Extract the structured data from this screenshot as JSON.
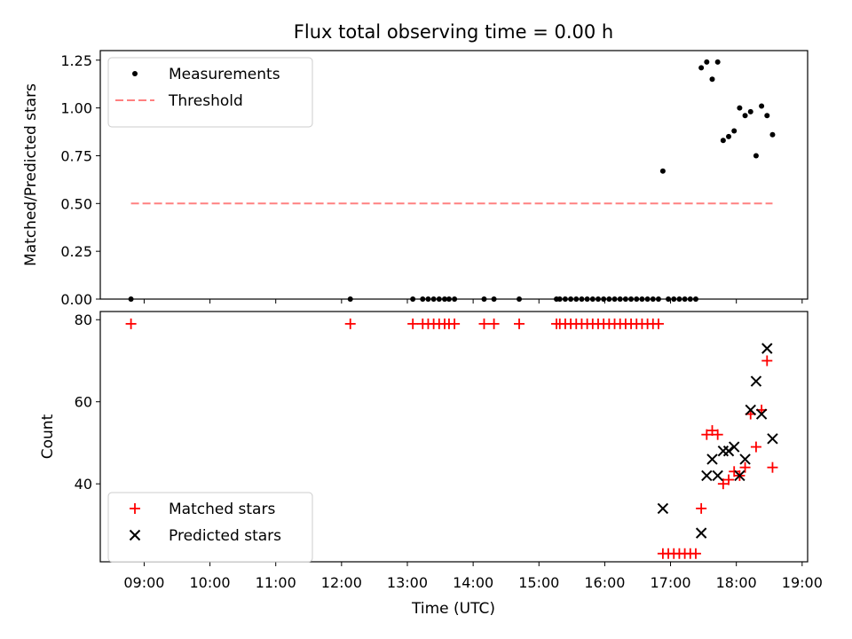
{
  "title": "Flux total observing time = 0.00 h",
  "xlabel": "Time (UTC)",
  "chart_data": [
    {
      "type": "scatter",
      "ylabel": "Matched/Predicted stars",
      "ylim": [
        0,
        1.3
      ],
      "xlim": [
        "08:20",
        "19:05"
      ],
      "yticks": [
        "0.00",
        "0.25",
        "0.50",
        "0.75",
        "1.00",
        "1.25"
      ],
      "legend": {
        "placement": "top-left"
      },
      "series": [
        {
          "name": "Measurements",
          "marker": "dot",
          "color": "#000000",
          "points": [
            [
              "08:48",
              0
            ],
            [
              "12:08",
              0
            ],
            [
              "13:05",
              0
            ],
            [
              "13:14",
              0
            ],
            [
              "13:19",
              0
            ],
            [
              "13:24",
              0
            ],
            [
              "13:29",
              0
            ],
            [
              "13:34",
              0
            ],
            [
              "13:38",
              0
            ],
            [
              "13:43",
              0
            ],
            [
              "14:10",
              0
            ],
            [
              "14:19",
              0
            ],
            [
              "14:42",
              0
            ],
            [
              "15:16",
              0
            ],
            [
              "15:19",
              0
            ],
            [
              "15:24",
              0
            ],
            [
              "15:29",
              0
            ],
            [
              "15:34",
              0
            ],
            [
              "15:39",
              0
            ],
            [
              "15:44",
              0
            ],
            [
              "15:49",
              0
            ],
            [
              "15:54",
              0
            ],
            [
              "15:59",
              0
            ],
            [
              "16:04",
              0
            ],
            [
              "16:09",
              0
            ],
            [
              "16:14",
              0
            ],
            [
              "16:19",
              0
            ],
            [
              "16:24",
              0
            ],
            [
              "16:29",
              0
            ],
            [
              "16:34",
              0
            ],
            [
              "16:39",
              0
            ],
            [
              "16:44",
              0
            ],
            [
              "16:49",
              0
            ],
            [
              "16:53",
              0.67
            ],
            [
              "16:58",
              0
            ],
            [
              "17:03",
              0
            ],
            [
              "17:08",
              0
            ],
            [
              "17:13",
              0
            ],
            [
              "17:18",
              0
            ],
            [
              "17:23",
              0
            ],
            [
              "17:28",
              1.21
            ],
            [
              "17:33",
              1.24
            ],
            [
              "17:38",
              1.15
            ],
            [
              "17:43",
              1.24
            ],
            [
              "17:48",
              0.83
            ],
            [
              "17:53",
              0.85
            ],
            [
              "17:58",
              0.88
            ],
            [
              "18:03",
              1.0
            ],
            [
              "18:08",
              0.96
            ],
            [
              "18:13",
              0.98
            ],
            [
              "18:18",
              0.75
            ],
            [
              "18:23",
              1.01
            ],
            [
              "18:28",
              0.96
            ],
            [
              "18:33",
              0.86
            ]
          ]
        },
        {
          "name": "Threshold",
          "marker": "dashed-line",
          "color": "#ff8080",
          "points": [
            [
              "08:48",
              0.5
            ],
            [
              "18:33",
              0.5
            ]
          ]
        }
      ]
    },
    {
      "type": "scatter",
      "ylabel": "Count",
      "ylim": [
        21,
        82
      ],
      "xlim": [
        "08:20",
        "19:05"
      ],
      "yticks": [
        "40",
        "60",
        "80"
      ],
      "xticks": [
        "09:00",
        "10:00",
        "11:00",
        "12:00",
        "13:00",
        "14:00",
        "15:00",
        "16:00",
        "17:00",
        "18:00",
        "19:00"
      ],
      "legend": {
        "placement": "bottom-left"
      },
      "series": [
        {
          "name": "Matched stars",
          "marker": "plus",
          "color": "#ff0000",
          "points": [
            [
              "08:48",
              79
            ],
            [
              "12:08",
              79
            ],
            [
              "13:05",
              79
            ],
            [
              "13:14",
              79
            ],
            [
              "13:19",
              79
            ],
            [
              "13:24",
              79
            ],
            [
              "13:29",
              79
            ],
            [
              "13:34",
              79
            ],
            [
              "13:38",
              79
            ],
            [
              "13:43",
              79
            ],
            [
              "14:10",
              79
            ],
            [
              "14:19",
              79
            ],
            [
              "14:42",
              79
            ],
            [
              "15:16",
              79
            ],
            [
              "15:19",
              79
            ],
            [
              "15:24",
              79
            ],
            [
              "15:29",
              79
            ],
            [
              "15:34",
              79
            ],
            [
              "15:39",
              79
            ],
            [
              "15:44",
              79
            ],
            [
              "15:49",
              79
            ],
            [
              "15:54",
              79
            ],
            [
              "15:59",
              79
            ],
            [
              "16:04",
              79
            ],
            [
              "16:09",
              79
            ],
            [
              "16:14",
              79
            ],
            [
              "16:19",
              79
            ],
            [
              "16:24",
              79
            ],
            [
              "16:29",
              79
            ],
            [
              "16:34",
              79
            ],
            [
              "16:39",
              79
            ],
            [
              "16:44",
              79
            ],
            [
              "16:49",
              79
            ],
            [
              "16:53",
              23
            ],
            [
              "16:58",
              23
            ],
            [
              "17:03",
              23
            ],
            [
              "17:08",
              23
            ],
            [
              "17:13",
              23
            ],
            [
              "17:18",
              23
            ],
            [
              "17:23",
              23
            ],
            [
              "17:28",
              34
            ],
            [
              "17:33",
              52
            ],
            [
              "17:38",
              53
            ],
            [
              "17:43",
              52
            ],
            [
              "17:48",
              40
            ],
            [
              "17:53",
              41
            ],
            [
              "17:58",
              43
            ],
            [
              "18:03",
              42
            ],
            [
              "18:08",
              44
            ],
            [
              "18:13",
              57
            ],
            [
              "18:18",
              49
            ],
            [
              "18:23",
              58
            ],
            [
              "18:28",
              70
            ],
            [
              "18:33",
              44
            ]
          ]
        },
        {
          "name": "Predicted stars",
          "marker": "x",
          "color": "#000000",
          "points": [
            [
              "16:53",
              34
            ],
            [
              "17:28",
              28
            ],
            [
              "17:33",
              42
            ],
            [
              "17:38",
              46
            ],
            [
              "17:43",
              42
            ],
            [
              "17:48",
              48
            ],
            [
              "17:53",
              48
            ],
            [
              "17:58",
              49
            ],
            [
              "18:03",
              42
            ],
            [
              "18:08",
              46
            ],
            [
              "18:13",
              58
            ],
            [
              "18:18",
              65
            ],
            [
              "18:23",
              57
            ],
            [
              "18:28",
              73
            ],
            [
              "18:33",
              51
            ]
          ]
        }
      ]
    }
  ]
}
